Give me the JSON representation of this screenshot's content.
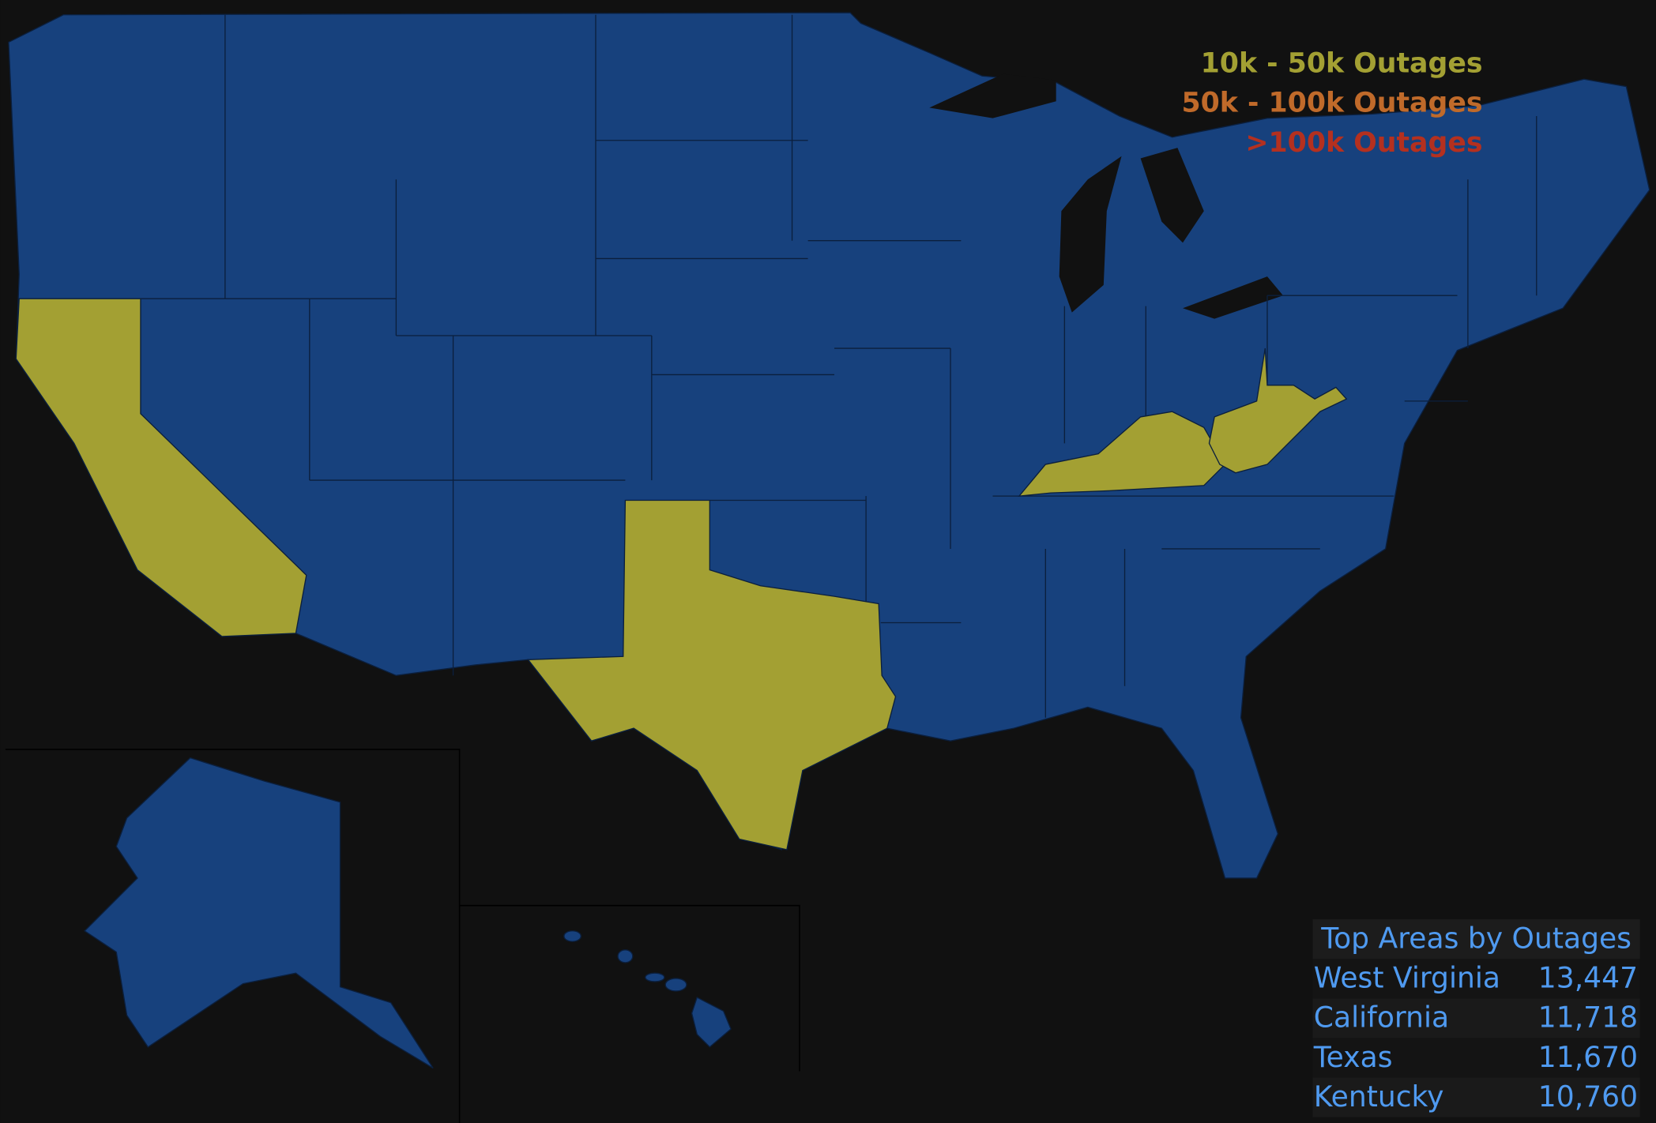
{
  "legend": [
    {
      "label": "10k - 50k Outages",
      "color": "#a3a033"
    },
    {
      "label": "50k - 100k Outages",
      "color": "#c06a2a"
    },
    {
      "label": ">100k Outages",
      "color": "#b4301f"
    }
  ],
  "table": {
    "title": "Top Areas by Outages",
    "rows": [
      [
        "West Virginia",
        "13,447"
      ],
      [
        "California",
        "11,718"
      ],
      [
        "Texas",
        "11,670"
      ],
      [
        "Kentucky",
        "10,760"
      ]
    ]
  }
}
